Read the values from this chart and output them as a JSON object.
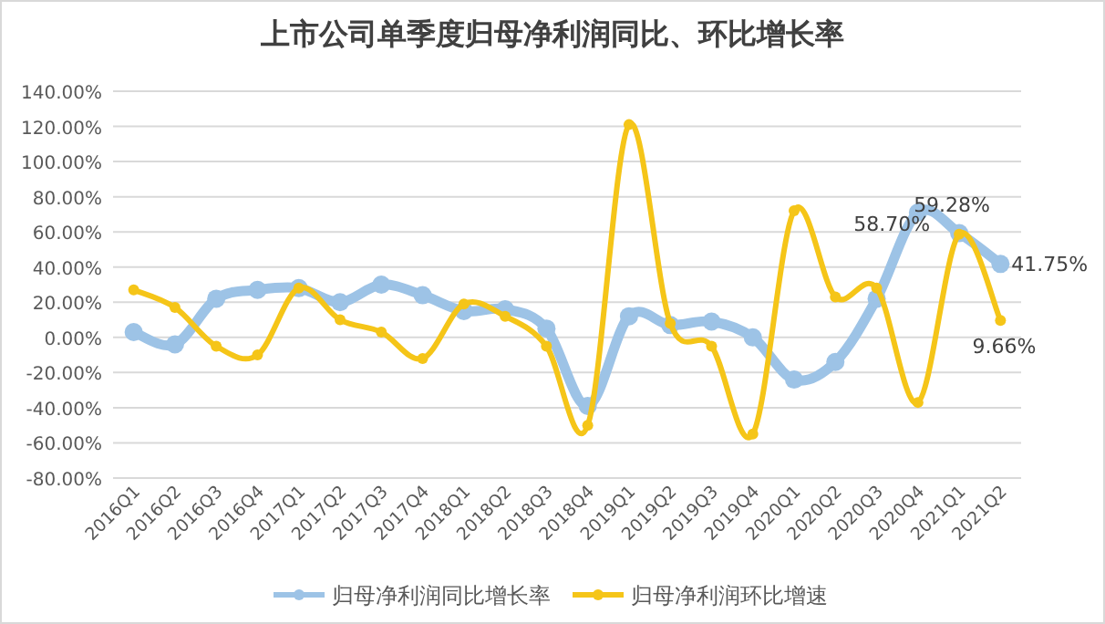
{
  "chart_data": {
    "type": "line",
    "title": "上市公司单季度归母净利润同比、环比增长率",
    "categories": [
      "2016Q1",
      "2016Q2",
      "2016Q3",
      "2016Q4",
      "2017Q1",
      "2017Q2",
      "2017Q3",
      "2017Q4",
      "2018Q1",
      "2018Q2",
      "2018Q3",
      "2018Q4",
      "2019Q1",
      "2019Q2",
      "2019Q3",
      "2019Q4",
      "2020Q1",
      "2020Q2",
      "2020Q3",
      "2020Q4",
      "2021Q1",
      "2021Q2"
    ],
    "series": [
      {
        "name": "归母净利润同比增长率",
        "color": "#9dc3e6",
        "values": [
          3,
          -4,
          22,
          27,
          28,
          20,
          30,
          24,
          15,
          16,
          5,
          -39,
          12,
          7,
          9,
          0,
          -24,
          -14,
          22,
          71,
          59.28,
          41.75
        ],
        "value_labels": [
          null,
          null,
          null,
          null,
          null,
          null,
          null,
          null,
          null,
          null,
          null,
          null,
          null,
          null,
          null,
          null,
          null,
          null,
          null,
          null,
          "59.28%",
          "41.75%"
        ]
      },
      {
        "name": "归母净利润环比增速",
        "color": "#f5c518",
        "values": [
          27,
          17,
          -5,
          -10,
          28,
          10,
          3,
          -12,
          19,
          12,
          -5,
          -50,
          121,
          8,
          -5,
          -55,
          72,
          23,
          28,
          -37,
          58.7,
          9.66
        ],
        "value_labels": [
          null,
          null,
          null,
          null,
          null,
          null,
          null,
          null,
          null,
          null,
          null,
          null,
          null,
          null,
          null,
          null,
          null,
          null,
          null,
          null,
          "58.70%",
          "9.66%"
        ]
      }
    ],
    "ylim": [
      -80,
      140
    ],
    "yticks": [
      {
        "value": -80,
        "label": "-80.00%"
      },
      {
        "value": -60,
        "label": "-60.00%"
      },
      {
        "value": -40,
        "label": "-40.00%"
      },
      {
        "value": -20,
        "label": "-20.00%"
      },
      {
        "value": 0,
        "label": "0.00%"
      },
      {
        "value": 20,
        "label": "20.00%"
      },
      {
        "value": 40,
        "label": "40.00%"
      },
      {
        "value": 60,
        "label": "60.00%"
      },
      {
        "value": 80,
        "label": "80.00%"
      },
      {
        "value": 100,
        "label": "100.00%"
      },
      {
        "value": 120,
        "label": "120.00%"
      },
      {
        "value": 140,
        "label": "140.00%"
      }
    ],
    "grid": "y",
    "legend": "bottom",
    "marker": "circle",
    "line_style": "solid"
  }
}
